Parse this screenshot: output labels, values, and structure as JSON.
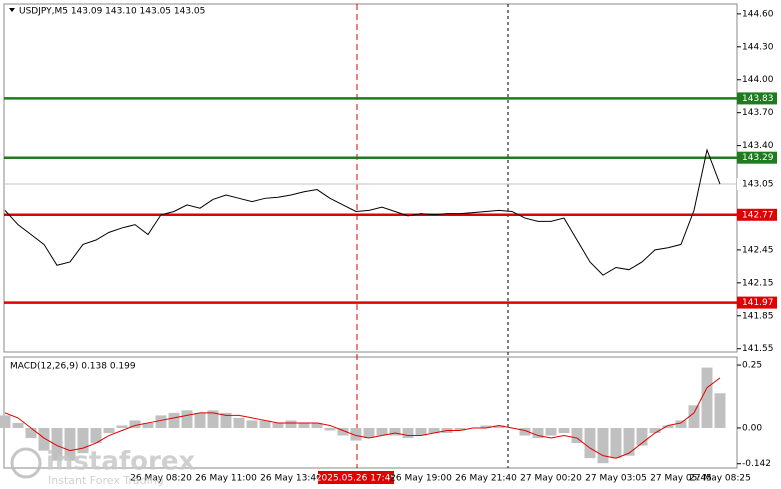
{
  "chart_data": [
    {
      "type": "line",
      "title": "USDJPY,M5  143.09 143.10 143.05 143.05",
      "color": "#000000",
      "categories": [
        null,
        null,
        null,
        null,
        null,
        null,
        null,
        null,
        null,
        null,
        null,
        null,
        "26 May 08:20",
        null,
        null,
        null,
        null,
        "26 May 11:00",
        null,
        null,
        null,
        null,
        "26 May 13:40",
        null,
        null,
        null,
        null,
        "2025.05.26 17:45",
        null,
        null,
        null,
        null,
        "26 May 19:00",
        null,
        null,
        null,
        null,
        "26 May 21:40",
        null,
        null,
        null,
        null,
        "27 May 00:20",
        null,
        null,
        null,
        null,
        "27 May 03:05",
        null,
        null,
        null,
        null,
        "27 May 05:45",
        null,
        null,
        "27 May 08:25"
      ],
      "values": [
        142.81,
        142.68,
        142.59,
        142.5,
        142.31,
        142.34,
        142.5,
        142.54,
        142.61,
        142.65,
        142.68,
        142.59,
        142.77,
        142.8,
        142.86,
        142.83,
        142.91,
        142.95,
        142.92,
        142.89,
        142.92,
        142.93,
        142.95,
        142.98,
        143.0,
        142.92,
        142.86,
        142.8,
        142.81,
        142.84,
        142.8,
        142.76,
        142.78,
        142.77,
        142.78,
        142.78,
        142.79,
        142.8,
        142.81,
        142.8,
        142.74,
        142.71,
        142.71,
        142.74,
        142.54,
        142.34,
        142.22,
        142.29,
        142.27,
        142.34,
        142.45,
        142.47,
        142.5,
        142.81,
        143.36,
        143.05
      ],
      "ylim": [
        141.52,
        144.69
      ],
      "yticks": [
        {
          "value": 144.6,
          "label": "144.60"
        },
        {
          "value": 144.3,
          "label": "144.30"
        },
        {
          "value": 144.0,
          "label": "144.00"
        },
        {
          "value": 143.7,
          "label": "143.70"
        },
        {
          "value": 143.4,
          "label": "143.40"
        },
        {
          "value": 142.45,
          "label": "142.45"
        },
        {
          "value": 142.15,
          "label": "142.15"
        },
        {
          "value": 141.85,
          "label": "141.85"
        },
        {
          "value": 141.55,
          "label": "141.55"
        }
      ],
      "levels": [
        {
          "value": 143.83,
          "color": "#1e7b1e"
        },
        {
          "value": 143.29,
          "color": "#1e7b1e"
        },
        {
          "value": 142.77,
          "color": "#e00000"
        },
        {
          "value": 141.97,
          "color": "#e00000"
        }
      ]
    },
    {
      "type": "macd",
      "title": "MACD(12,26,9) 0.138 0.199",
      "series": [
        {
          "color": "#c0c0c0",
          "values": [
            0.05,
            0.02,
            -0.04,
            -0.09,
            -0.13,
            -0.13,
            -0.1,
            -0.06,
            -0.02,
            0.01,
            0.03,
            0.02,
            0.05,
            0.06,
            0.07,
            0.06,
            0.07,
            0.06,
            0.04,
            0.03,
            0.03,
            0.02,
            0.03,
            0.02,
            0.02,
            -0.01,
            -0.03,
            -0.05,
            -0.04,
            -0.03,
            -0.03,
            -0.04,
            -0.03,
            -0.02,
            -0.02,
            -0.01,
            0.0,
            0.01,
            0.01,
            0.0,
            -0.03,
            -0.04,
            -0.03,
            -0.02,
            -0.06,
            -0.12,
            -0.14,
            -0.12,
            -0.11,
            -0.07,
            -0.02,
            0.01,
            0.03,
            0.09,
            0.24,
            0.138
          ]
        },
        {
          "color": "#e00000",
          "values": [
            0.06,
            0.04,
            0.0,
            -0.04,
            -0.07,
            -0.09,
            -0.08,
            -0.06,
            -0.03,
            -0.01,
            0.01,
            0.02,
            0.03,
            0.04,
            0.05,
            0.06,
            0.06,
            0.05,
            0.05,
            0.04,
            0.03,
            0.02,
            0.02,
            0.02,
            0.02,
            0.01,
            -0.01,
            -0.03,
            -0.04,
            -0.03,
            -0.02,
            -0.03,
            -0.03,
            -0.02,
            -0.01,
            -0.01,
            0.0,
            0.0,
            0.01,
            0.0,
            -0.01,
            -0.03,
            -0.04,
            -0.03,
            -0.04,
            -0.08,
            -0.11,
            -0.12,
            -0.1,
            -0.06,
            -0.02,
            0.01,
            0.02,
            0.06,
            0.16,
            0.199
          ]
        }
      ],
      "ylim": [
        -0.159,
        0.282
      ],
      "yticks": [
        0.25,
        {
          "value": 0,
          "label": "0.00"
        },
        -0.142
      ]
    }
  ],
  "watermark": {
    "brand": "instaforex",
    "tagline": "Instant Forex Trading"
  }
}
